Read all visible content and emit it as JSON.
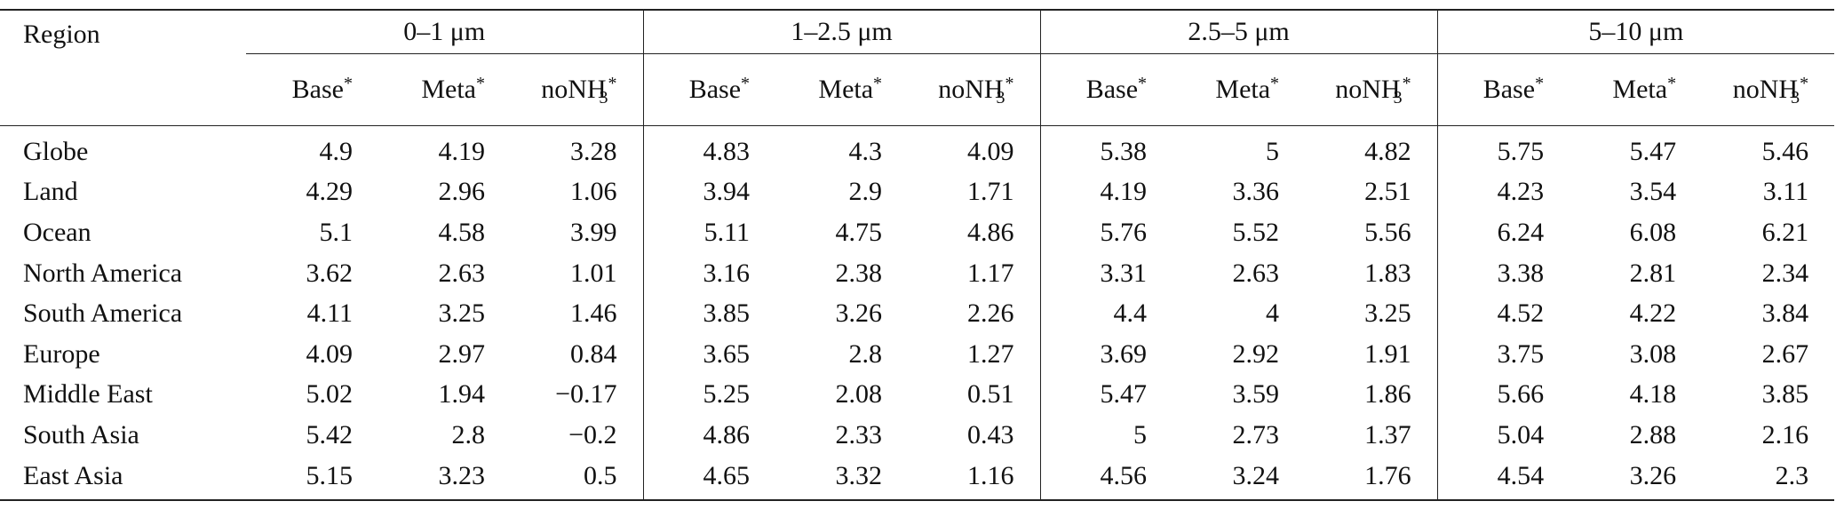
{
  "table": {
    "header": {
      "region": "Region",
      "groups": [
        "0–1 μm",
        "1–2.5 μm",
        "2.5–5 μm",
        "5–10 μm"
      ],
      "columns": [
        {
          "text": "Base",
          "sup": "*"
        },
        {
          "text": "Meta",
          "sup": "*"
        },
        {
          "text": "noNH",
          "sub": "3",
          "sup": "*"
        }
      ]
    },
    "rows": [
      {
        "region": "Globe",
        "values": [
          "4.9",
          "4.19",
          "3.28",
          "4.83",
          "4.3",
          "4.09",
          "5.38",
          "5",
          "4.82",
          "5.75",
          "5.47",
          "5.46"
        ]
      },
      {
        "region": "Land",
        "values": [
          "4.29",
          "2.96",
          "1.06",
          "3.94",
          "2.9",
          "1.71",
          "4.19",
          "3.36",
          "2.51",
          "4.23",
          "3.54",
          "3.11"
        ]
      },
      {
        "region": "Ocean",
        "values": [
          "5.1",
          "4.58",
          "3.99",
          "5.11",
          "4.75",
          "4.86",
          "5.76",
          "5.52",
          "5.56",
          "6.24",
          "6.08",
          "6.21"
        ]
      },
      {
        "region": "North America",
        "values": [
          "3.62",
          "2.63",
          "1.01",
          "3.16",
          "2.38",
          "1.17",
          "3.31",
          "2.63",
          "1.83",
          "3.38",
          "2.81",
          "2.34"
        ]
      },
      {
        "region": "South America",
        "values": [
          "4.11",
          "3.25",
          "1.46",
          "3.85",
          "3.26",
          "2.26",
          "4.4",
          "4",
          "3.25",
          "4.52",
          "4.22",
          "3.84"
        ]
      },
      {
        "region": "Europe",
        "values": [
          "4.09",
          "2.97",
          "0.84",
          "3.65",
          "2.8",
          "1.27",
          "3.69",
          "2.92",
          "1.91",
          "3.75",
          "3.08",
          "2.67"
        ]
      },
      {
        "region": "Middle East",
        "values": [
          "5.02",
          "1.94",
          "−0.17",
          "5.25",
          "2.08",
          "0.51",
          "5.47",
          "3.59",
          "1.86",
          "5.66",
          "4.18",
          "3.85"
        ]
      },
      {
        "region": "South Asia",
        "values": [
          "5.42",
          "2.8",
          "−0.2",
          "4.86",
          "2.33",
          "0.43",
          "5",
          "2.73",
          "1.37",
          "5.04",
          "2.88",
          "2.16"
        ]
      },
      {
        "region": "East Asia",
        "values": [
          "5.15",
          "3.23",
          "0.5",
          "4.65",
          "3.32",
          "1.16",
          "4.56",
          "3.24",
          "1.76",
          "4.54",
          "3.26",
          "2.3"
        ]
      }
    ]
  }
}
